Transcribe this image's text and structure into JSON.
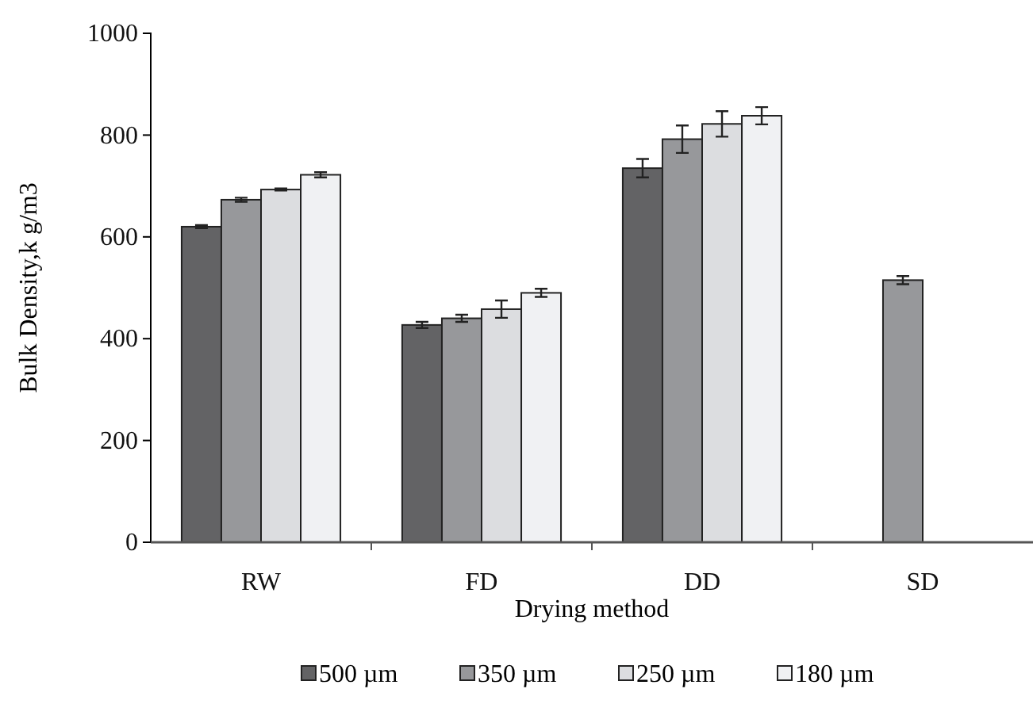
{
  "chart_data": {
    "type": "bar",
    "xlabel": "Drying method",
    "ylabel": "Bulk Density,k g/m3",
    "categories": [
      "RW",
      "FD",
      "DD",
      "SD"
    ],
    "ylim": [
      0,
      1000
    ],
    "yticks": [
      0,
      200,
      400,
      600,
      800,
      1000
    ],
    "grid": false,
    "legend": "bottom",
    "series": [
      {
        "name": "500 µm",
        "color": "#636365",
        "values": [
          620,
          427,
          735,
          null
        ],
        "errors": [
          3,
          6,
          18,
          null
        ]
      },
      {
        "name": "350 µm",
        "color": "#97989b",
        "values": [
          673,
          440,
          792,
          515
        ],
        "errors": [
          4,
          7,
          27,
          8
        ]
      },
      {
        "name": "250 µm",
        "color": "#dcdde0",
        "values": [
          693,
          458,
          822,
          null
        ],
        "errors": [
          2,
          17,
          25,
          null
        ]
      },
      {
        "name": "180 µm",
        "color": "#f0f1f3",
        "values": [
          722,
          490,
          838,
          null
        ],
        "errors": [
          5,
          8,
          17,
          null
        ]
      }
    ]
  }
}
